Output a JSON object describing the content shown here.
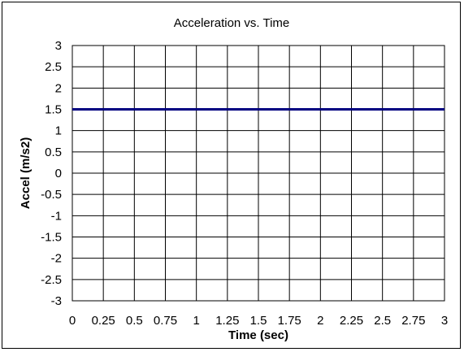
{
  "chart_data": {
    "type": "line",
    "title": "Acceleration vs. Time",
    "xlabel": "Time (sec)",
    "ylabel": "Accel (m/s2)",
    "xlim": [
      0,
      3
    ],
    "ylim": [
      -3,
      3
    ],
    "xticks": [
      "0",
      "0.25",
      "0.5",
      "0.75",
      "1",
      "1.25",
      "1.5",
      "1.75",
      "2",
      "2.25",
      "2.5",
      "2.75",
      "3"
    ],
    "yticks": [
      "3",
      "2.5",
      "2",
      "1.5",
      "1",
      "0.5",
      "0",
      "-0.5",
      "-1",
      "-1.5",
      "-2",
      "-2.5",
      "-3"
    ],
    "grid": true,
    "series": [
      {
        "x": [
          0,
          3
        ],
        "y": [
          1.5,
          1.5
        ],
        "color": "#000080"
      }
    ]
  }
}
